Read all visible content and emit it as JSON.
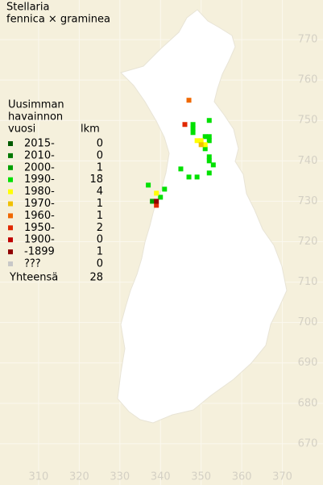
{
  "title": [
    "Stellaria",
    "fennica × graminea"
  ],
  "map": {
    "xlim": [
      300.5,
      380
    ],
    "ylim": [
      659.8,
      779.8
    ],
    "xticks": [
      310,
      320,
      330,
      340,
      350,
      360,
      370
    ],
    "yticks": [
      670,
      680,
      690,
      700,
      710,
      720,
      730,
      740,
      750,
      760,
      770
    ]
  },
  "legend": {
    "header": [
      "Uusimman",
      "havainnon",
      "vuosi"
    ],
    "count_header": "lkm",
    "rows": [
      {
        "label": "2015-",
        "count": 0,
        "color": "#005a00",
        "points": []
      },
      {
        "label": "2010-",
        "count": 0,
        "color": "#007800",
        "points": []
      },
      {
        "label": "2000-",
        "count": 1,
        "color": "#00a000",
        "points": [
          {
            "x": 338,
            "y": 730
          }
        ]
      },
      {
        "label": "1990-",
        "count": 18,
        "color": "#00e000",
        "points": [
          {
            "x": 352,
            "y": 750
          },
          {
            "x": 348,
            "y": 749
          },
          {
            "x": 348,
            "y": 748
          },
          {
            "x": 348,
            "y": 747
          },
          {
            "x": 351,
            "y": 746
          },
          {
            "x": 352,
            "y": 746
          },
          {
            "x": 352,
            "y": 745
          },
          {
            "x": 351,
            "y": 743
          },
          {
            "x": 352,
            "y": 741
          },
          {
            "x": 352,
            "y": 740
          },
          {
            "x": 353,
            "y": 739
          },
          {
            "x": 345,
            "y": 738
          },
          {
            "x": 347,
            "y": 736
          },
          {
            "x": 349,
            "y": 736
          },
          {
            "x": 352,
            "y": 737
          },
          {
            "x": 337,
            "y": 734
          },
          {
            "x": 341,
            "y": 733
          },
          {
            "x": 340,
            "y": 731
          }
        ]
      },
      {
        "label": "1980-",
        "count": 4,
        "color": "#ffff00",
        "points": [
          {
            "x": 349,
            "y": 745
          },
          {
            "x": 350,
            "y": 745
          },
          {
            "x": 351,
            "y": 744
          },
          {
            "x": 339,
            "y": 732
          }
        ]
      },
      {
        "label": "1970-",
        "count": 1,
        "color": "#f0c000",
        "points": [
          {
            "x": 350,
            "y": 744
          }
        ]
      },
      {
        "label": "1960-",
        "count": 1,
        "color": "#f06800",
        "points": [
          {
            "x": 347,
            "y": 755
          }
        ]
      },
      {
        "label": "1950-",
        "count": 2,
        "color": "#e02800",
        "points": [
          {
            "x": 346,
            "y": 749
          },
          {
            "x": 339,
            "y": 729
          }
        ]
      },
      {
        "label": "1900-",
        "count": 0,
        "color": "#c00000",
        "points": []
      },
      {
        "label": "-1899",
        "count": 1,
        "color": "#900000",
        "points": [
          {
            "x": 339,
            "y": 730
          }
        ]
      },
      {
        "label": "???",
        "count": 0,
        "color": "#c8c8c8",
        "points": []
      }
    ],
    "total_label": "Yhteensä",
    "total": 28
  }
}
